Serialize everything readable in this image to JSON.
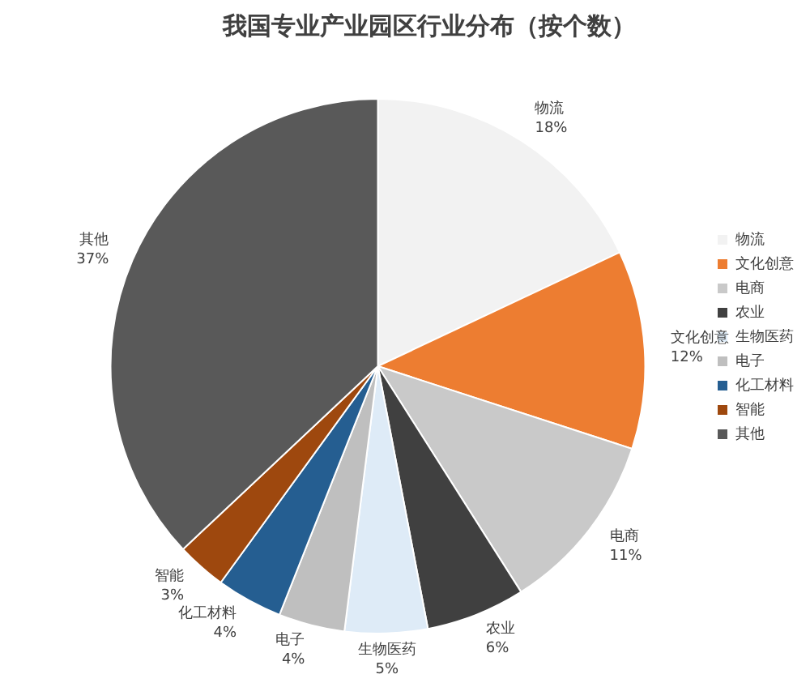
{
  "chart_data": {
    "type": "pie",
    "title": "我国专业产业园区行业分布（按个数）",
    "categories": [
      "物流",
      "文化创意",
      "电商",
      "农业",
      "生物医药",
      "电子",
      "化工材料",
      "智能",
      "其他"
    ],
    "values": [
      18,
      12,
      11,
      6,
      5,
      4,
      4,
      3,
      37
    ],
    "value_labels": [
      "18%",
      "12%",
      "11%",
      "6%",
      "5%",
      "4%",
      "4%",
      "3%",
      "37%"
    ],
    "colors": [
      "#f2f2f2",
      "#ed7d31",
      "#c9c9c9",
      "#404040",
      "#deebf7",
      "#bfbfbf",
      "#255e91",
      "#9e480e",
      "#595959"
    ],
    "legend": "right"
  }
}
